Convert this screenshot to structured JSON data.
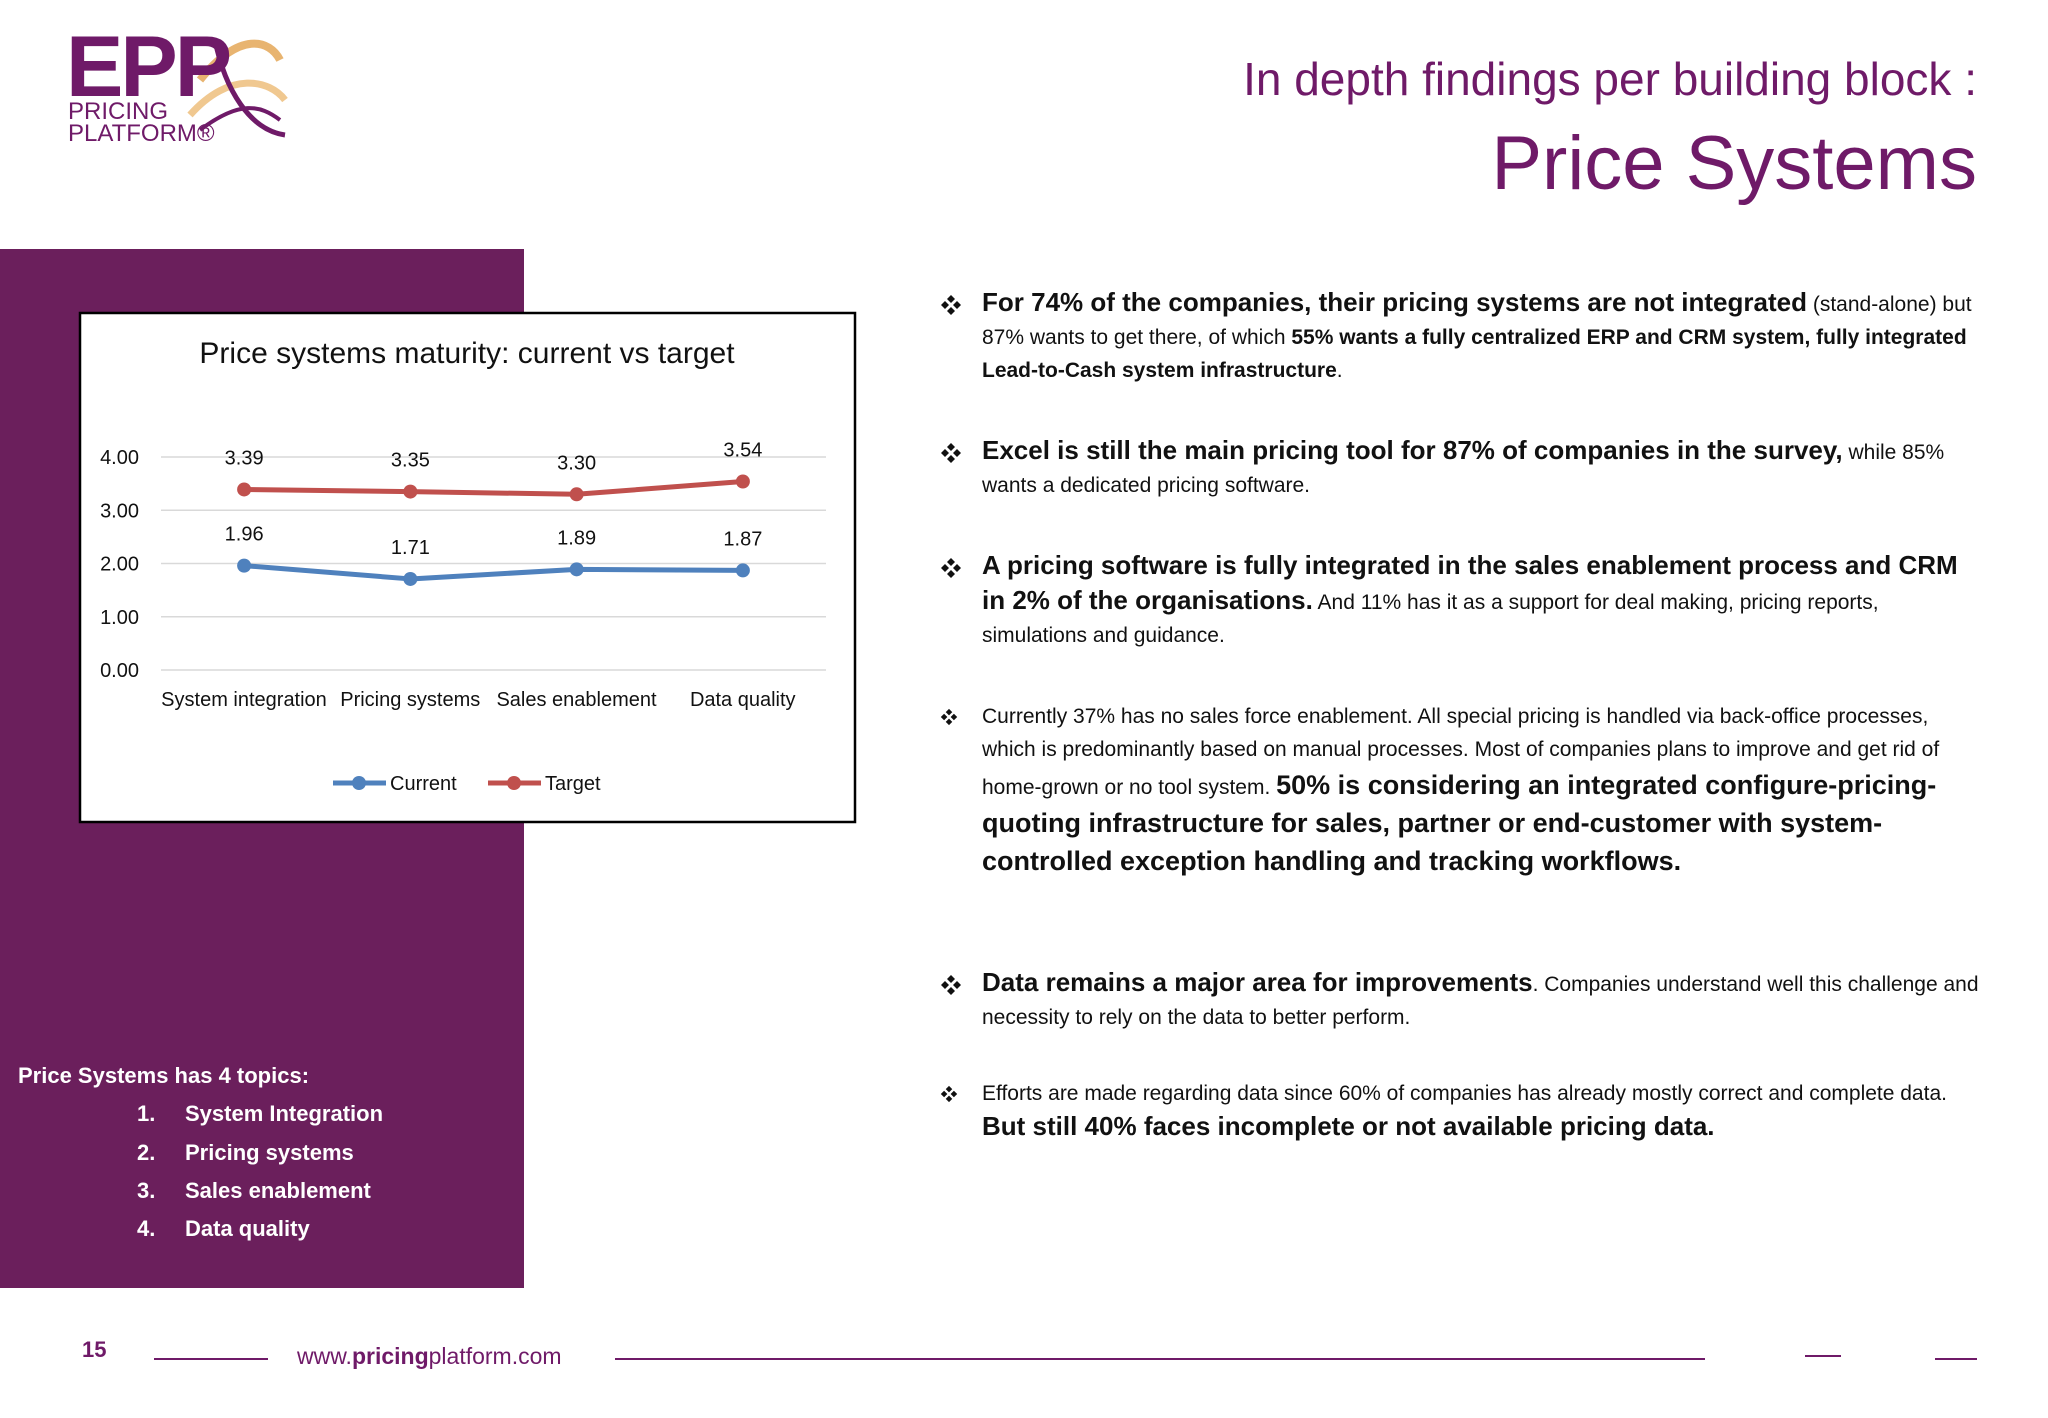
{
  "logo": {
    "main": "EPP",
    "line1": "PRICING",
    "line2": "PLATFORM®"
  },
  "header": {
    "subtitle": "In depth findings per building block :",
    "title": "Price Systems"
  },
  "chart_data": {
    "type": "line",
    "title": "Price systems maturity: current vs target",
    "categories": [
      "System integration",
      "Pricing systems",
      "Sales enablement",
      "Data quality"
    ],
    "series": [
      {
        "name": "Current",
        "color": "#4f81bd",
        "values": [
          1.96,
          1.71,
          1.89,
          1.87
        ],
        "value_labels": [
          "1.96",
          "1.71",
          "1.89",
          "1.87"
        ]
      },
      {
        "name": "Target",
        "color": "#c0504d",
        "values": [
          3.39,
          3.35,
          3.3,
          3.54
        ],
        "value_labels": [
          "3.39",
          "3.35",
          "3.30",
          "3.54"
        ]
      }
    ],
    "ylim": [
      0,
      4
    ],
    "yticks": [
      {
        "value": 0,
        "label": "0.00"
      },
      {
        "value": 1,
        "label": "1.00"
      },
      {
        "value": 2,
        "label": "2.00"
      },
      {
        "value": 3,
        "label": "3.00"
      },
      {
        "value": 4,
        "label": "4.00"
      }
    ],
    "grid": true,
    "legend": "bottom"
  },
  "sidebar": {
    "heading": "Price Systems has 4 topics:",
    "items": [
      {
        "number": "1.",
        "text": "System Integration"
      },
      {
        "number": "2.",
        "text": "Pricing systems"
      },
      {
        "number": "3.",
        "text": "Sales enablement"
      },
      {
        "number": "4.",
        "text": "Data quality"
      }
    ]
  },
  "bullets": [
    [
      "For 74% of the companies, their pricing systems are not integrated",
      "(stand-alone) but 87% wants to get there, of which",
      "55% wants a fully centralized ERP and CRM system, fully integrated Lead-to-Cash system infrastructure",
      "."
    ],
    [
      "Excel is still the main pricing tool for 87% of companies in the survey,",
      "while 85% wants a dedicated pricing software."
    ],
    [
      "A pricing software is fully integrated in the sales enablement process and CRM in 2% of the organisations.",
      "And 11% has it as a support for deal making, pricing reports, simulations and guidance."
    ],
    [
      "Currently 37% has no sales force enablement. All special pricing is handled via back-office processes, which is predominantly based on manual processes. Most of companies plans to improve and get rid of home-grown or no tool system.",
      "50% is considering an integrated configure-pricing-quoting infrastructure for sales, partner or end-customer with system-controlled exception handling and tracking workflows."
    ],
    [
      "Data remains a major area for improvements",
      ". Companies understand well this challenge and necessity to rely on the data to better perform."
    ],
    [
      "Efforts are made regarding data since 60% of companies has already mostly correct and complete data.",
      "But still 40% faces incomplete or not available pricing data."
    ]
  ],
  "footer": {
    "page": "15",
    "url_start": "www.",
    "url_bold": "pricing",
    "url_end": "platform.com"
  }
}
